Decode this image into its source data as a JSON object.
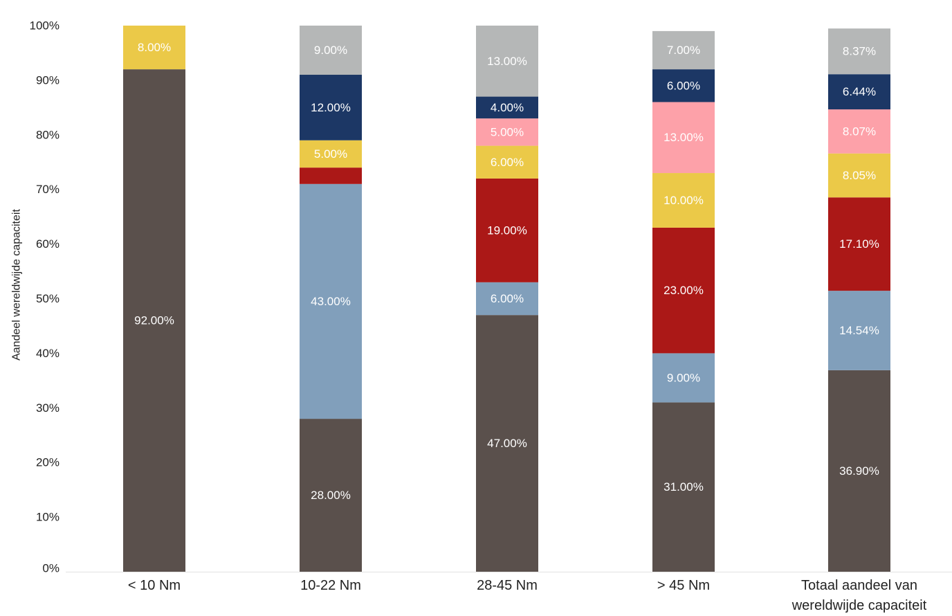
{
  "chart_data": {
    "type": "bar",
    "stacked": true,
    "title": "",
    "xlabel": "",
    "ylabel": "Aandeel wereldwijde capaciteit",
    "ylim": [
      0,
      100
    ],
    "yticks": [
      "0%",
      "10%",
      "20%",
      "30%",
      "40%",
      "50%",
      "60%",
      "70%",
      "80%",
      "90%",
      "100%"
    ],
    "categories": [
      [
        "< 10 Nm"
      ],
      [
        "10-22 Nm"
      ],
      [
        "28-45 Nm"
      ],
      [
        "> 45 Nm"
      ],
      [
        "Totaal aandeel van",
        "wereldwijde capaciteit"
      ]
    ],
    "grid": false,
    "series": [
      {
        "color": "#5a504c",
        "text_color": "#ffffff",
        "values": [
          92,
          28,
          47,
          31,
          36.9
        ],
        "labels": [
          "92.00%",
          "28.00%",
          "47.00%",
          "31.00%",
          "36.90%"
        ]
      },
      {
        "color": "#819fbb",
        "text_color": "#ffffff",
        "values": [
          0,
          43,
          6,
          9,
          14.54
        ],
        "labels": [
          "",
          "43.00%",
          "6.00%",
          "9.00%",
          "14.54%"
        ]
      },
      {
        "color": "#ab1817",
        "text_color": "#ffffff",
        "values": [
          0,
          3,
          19,
          23,
          17.1
        ],
        "labels": [
          "",
          "",
          "19.00%",
          "23.00%",
          "17.10%"
        ]
      },
      {
        "color": "#ebc948",
        "text_color": "#ffffff",
        "values": [
          8,
          5,
          6,
          10,
          8.05
        ],
        "labels": [
          "8.00%",
          "5.00%",
          "6.00%",
          "10.00%",
          "8.05%"
        ]
      },
      {
        "color": "#fda1a9",
        "text_color": "#ffffff",
        "values": [
          0,
          0,
          5,
          13,
          8.07
        ],
        "labels": [
          "",
          "",
          "5.00%",
          "13.00%",
          "8.07%"
        ]
      },
      {
        "color": "#1c3765",
        "text_color": "#ffffff",
        "values": [
          0,
          12,
          4,
          6,
          6.44
        ],
        "labels": [
          "",
          "12.00%",
          "4.00%",
          "6.00%",
          "6.44%"
        ]
      },
      {
        "color": "#b5b7b7",
        "text_color": "#ffffff",
        "values": [
          0,
          9,
          13,
          7,
          8.37
        ],
        "labels": [
          "",
          "9.00%",
          "13.00%",
          "7.00%",
          "8.37%"
        ]
      }
    ]
  }
}
